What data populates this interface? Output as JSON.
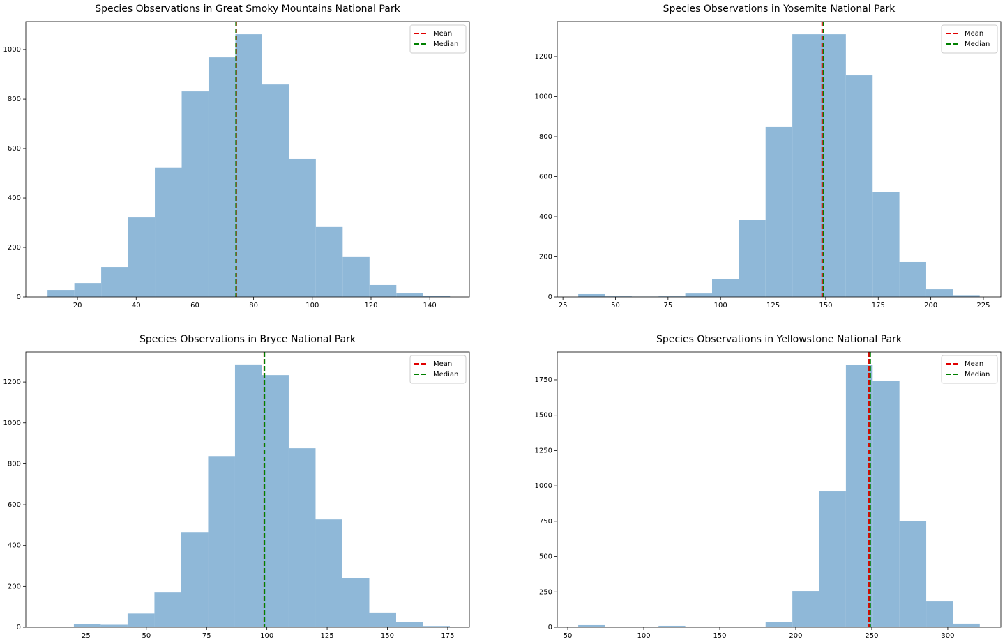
{
  "chart_data": [
    {
      "type": "histogram",
      "title": "Species Observations in Great Smoky Mountains National Park",
      "bins": [
        9.8,
        18.94,
        28.08,
        37.22,
        46.36,
        55.5,
        64.64,
        73.78,
        82.92,
        92.06,
        101.2,
        110.34,
        119.48,
        128.62,
        137.76,
        146.9
      ],
      "values": [
        28,
        56,
        121,
        321,
        522,
        831,
        969,
        1062,
        859,
        558,
        285,
        161,
        48,
        14,
        3
      ],
      "color": "#8fb8d8",
      "xlim": [
        2.4,
        153.5
      ],
      "xticks": [
        20,
        40,
        60,
        80,
        100,
        120,
        140
      ],
      "ylim": [
        0,
        1113
      ],
      "yticks": [
        0,
        200,
        400,
        600,
        800,
        1000
      ],
      "lines": [
        {
          "name": "Mean",
          "color": "#e00000",
          "value": 74.1
        },
        {
          "name": "Median",
          "color": "#008000",
          "value": 74
        }
      ],
      "legend": "upper right"
    },
    {
      "type": "histogram",
      "title": "Species Observations in Yosemite National Park",
      "bins": [
        32.3,
        45.03,
        57.76,
        70.49,
        83.22,
        95.95,
        108.68,
        121.41,
        134.14,
        146.87,
        159.6,
        172.33,
        185.06,
        197.79,
        210.52,
        223.25
      ],
      "values": [
        14,
        3,
        2,
        3,
        17,
        90,
        386,
        849,
        1311,
        1311,
        1106,
        522,
        174,
        38,
        9
      ],
      "color": "#8fb8d8",
      "xlim": [
        22.3,
        233.3
      ],
      "xticks": [
        25,
        50,
        75,
        100,
        125,
        150,
        175,
        200,
        225
      ],
      "ylim": [
        0,
        1374
      ],
      "yticks": [
        0,
        200,
        400,
        600,
        800,
        1000,
        1200
      ],
      "lines": [
        {
          "name": "Mean",
          "color": "#e00000",
          "value": 148.3
        },
        {
          "name": "Median",
          "color": "#008000",
          "value": 149
        }
      ],
      "legend": "upper right"
    },
    {
      "type": "histogram",
      "title": "Species Observations in Bryce National Park",
      "bins": [
        8.8,
        19.94,
        31.08,
        42.22,
        53.36,
        64.5,
        75.64,
        86.78,
        97.92,
        109.06,
        120.2,
        131.34,
        142.48,
        153.62,
        164.76,
        175.9
      ],
      "values": [
        3,
        16,
        12,
        67,
        170,
        463,
        838,
        1286,
        1234,
        876,
        528,
        242,
        72,
        24,
        6
      ],
      "color": "#8fb8d8",
      "xlim": [
        0,
        184
      ],
      "xticks": [
        25,
        50,
        75,
        100,
        125,
        150,
        175
      ],
      "ylim": [
        0,
        1347
      ],
      "yticks": [
        0,
        200,
        400,
        600,
        800,
        1000,
        1200
      ],
      "lines": [
        {
          "name": "Mean",
          "color": "#e00000",
          "value": 98.9
        },
        {
          "name": "Median",
          "color": "#008000",
          "value": 99
        }
      ],
      "legend": "upper right"
    },
    {
      "type": "histogram",
      "title": "Species Observations in Yellowstone National Park",
      "bins": [
        56.9,
        74.51,
        92.12,
        109.73,
        127.34,
        144.95,
        162.56,
        180.17,
        197.78,
        215.39,
        233,
        250.61,
        268.22,
        285.83,
        303.44,
        321.05
      ],
      "values": [
        15,
        0,
        0,
        10,
        5,
        0,
        0,
        39,
        256,
        961,
        1858,
        1740,
        754,
        182,
        25
      ],
      "color": "#8fb8d8",
      "xlim": [
        43.1,
        334.9
      ],
      "xticks": [
        50,
        100,
        150,
        200,
        250,
        300
      ],
      "ylim": [
        0,
        1947
      ],
      "yticks": [
        0,
        250,
        500,
        750,
        1000,
        1250,
        1500,
        1750
      ],
      "lines": [
        {
          "name": "Mean",
          "color": "#e00000",
          "value": 248.2
        },
        {
          "name": "Median",
          "color": "#008000",
          "value": 249
        }
      ],
      "legend": "upper right"
    }
  ]
}
